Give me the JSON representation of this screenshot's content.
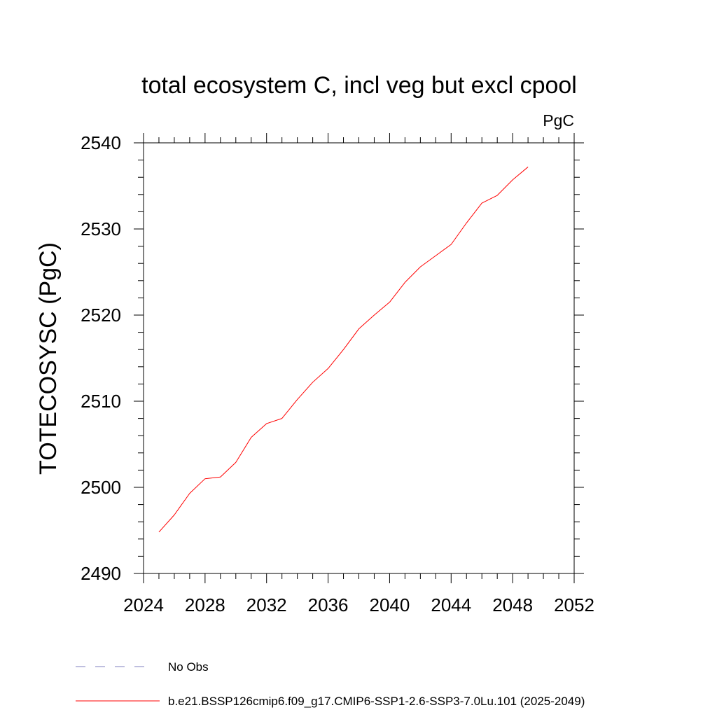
{
  "chart_data": {
    "type": "line",
    "title": "total ecosystem C, incl veg but excl cpool",
    "units_label": "PgC",
    "xlabel": "",
    "ylabel": "TOTECOSYSC  (PgC)",
    "xlim": [
      2024,
      2052
    ],
    "ylim": [
      2490,
      2540
    ],
    "x_ticks": [
      2024,
      2028,
      2032,
      2036,
      2040,
      2044,
      2048,
      2052
    ],
    "y_ticks": [
      2490,
      2500,
      2510,
      2520,
      2530,
      2540
    ],
    "x_tick_labels": [
      "2024",
      "2028",
      "2032",
      "2036",
      "2040",
      "2044",
      "2048",
      "2052"
    ],
    "y_tick_labels": [
      "2490",
      "2500",
      "2510",
      "2520",
      "2530",
      "2540"
    ],
    "x_minor_step": 1,
    "y_minor_step": 2,
    "grid": false,
    "series": [
      {
        "name": "b.e21.BSSP126cmip6.f09_g17.CMIP6-SSP1-2.6-SSP3-7.0Lu.101 (2025-2049)",
        "color": "#ff0000",
        "x": [
          2025,
          2026,
          2027,
          2028,
          2029,
          2030,
          2031,
          2032,
          2033,
          2034,
          2035,
          2036,
          2037,
          2038,
          2039,
          2040,
          2041,
          2042,
          2043,
          2044,
          2045,
          2046,
          2047,
          2048,
          2049
        ],
        "values": [
          2494.8,
          2496.8,
          2499.3,
          2501.0,
          2501.2,
          2502.9,
          2505.8,
          2507.4,
          2508.0,
          2510.2,
          2512.2,
          2513.8,
          2516.0,
          2518.4,
          2520.0,
          2521.5,
          2523.8,
          2525.6,
          2526.9,
          2528.2,
          2530.7,
          2533.0,
          2533.9,
          2535.7,
          2537.2
        ]
      }
    ],
    "legend": [
      {
        "label": "No Obs",
        "style": "dashed",
        "color": "#7f7fbf"
      },
      {
        "label": "b.e21.BSSP126cmip6.f09_g17.CMIP6-SSP1-2.6-SSP3-7.0Lu.101 (2025-2049)",
        "style": "solid",
        "color": "#ff0000"
      }
    ],
    "legend_position": "bottom-left"
  }
}
